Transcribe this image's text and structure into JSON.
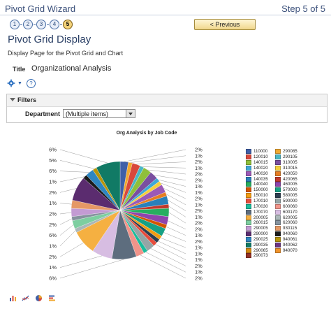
{
  "wizard": {
    "title": "Pivot Grid Wizard",
    "step_text": "Step 5 of 5",
    "steps": [
      "1",
      "2",
      "3",
      "4",
      "5"
    ],
    "current_step": 5,
    "previous_label": "< Previous"
  },
  "page": {
    "title": "Pivot Grid Display",
    "description": "Display Page for the Pivot Grid and Chart",
    "title_label": "Title",
    "title_value": "Organizational Analysis"
  },
  "icons": {
    "settings": "gear-icon",
    "help": "help-icon",
    "help_glyph": "?"
  },
  "filters": {
    "heading": "Filters",
    "department_label": "Department",
    "department_value": "(Multiple items)"
  },
  "chart_data": {
    "type": "pie",
    "title": "Org Analysis by Job Code",
    "left_labels": [
      "6%",
      "5%",
      "6%",
      "1%",
      "2%",
      "1%",
      "2%",
      "2%",
      "6%",
      "1%",
      "2%",
      "1%",
      "6%"
    ],
    "right_labels": [
      "2%",
      "1%",
      "2%",
      "1%",
      "2%",
      "2%",
      "1%",
      "1%",
      "2%",
      "1%",
      "2%",
      "1%",
      "2%",
      "2%",
      "1%",
      "2%",
      "1%",
      "1%",
      "1%",
      "2%",
      "1%",
      "2%"
    ],
    "legend": [
      {
        "code": "110000",
        "color": "#3e5fa8"
      },
      {
        "code": "290085",
        "color": "#f0a830"
      },
      {
        "code": "120010",
        "color": "#d9483b"
      },
      {
        "code": "290105",
        "color": "#4ab7c4"
      },
      {
        "code": "140015",
        "color": "#8fbf3a"
      },
      {
        "code": "310005",
        "color": "#7a4fa0"
      },
      {
        "code": "140020",
        "color": "#3fa8d6"
      },
      {
        "code": "310015",
        "color": "#f5d03c"
      },
      {
        "code": "140030",
        "color": "#9b59b6"
      },
      {
        "code": "420050",
        "color": "#e67e22"
      },
      {
        "code": "140035",
        "color": "#2980b9"
      },
      {
        "code": "420065",
        "color": "#c0392b"
      },
      {
        "code": "140040",
        "color": "#27ae60"
      },
      {
        "code": "460005",
        "color": "#8e44ad"
      },
      {
        "code": "150000",
        "color": "#d35400"
      },
      {
        "code": "570000",
        "color": "#16a085"
      },
      {
        "code": "150010",
        "color": "#f39c12"
      },
      {
        "code": "580005",
        "color": "#2c3e50"
      },
      {
        "code": "170010",
        "color": "#e74c3c"
      },
      {
        "code": "590000",
        "color": "#95a5a6"
      },
      {
        "code": "170030",
        "color": "#1abc9c"
      },
      {
        "code": "600060",
        "color": "#f1948a"
      },
      {
        "code": "170070",
        "color": "#5d6d7e"
      },
      {
        "code": "600170",
        "color": "#d7bde2"
      },
      {
        "code": "200005",
        "color": "#f5b041"
      },
      {
        "code": "620005",
        "color": "#aab7b8"
      },
      {
        "code": "260015",
        "color": "#7dcea0"
      },
      {
        "code": "620060",
        "color": "#85929e"
      },
      {
        "code": "290005",
        "color": "#c39bd3"
      },
      {
        "code": "930115",
        "color": "#e59866"
      },
      {
        "code": "290000",
        "color": "#5b2c6f"
      },
      {
        "code": "940060",
        "color": "#1b1b1b"
      },
      {
        "code": "290025",
        "color": "#2e86c1"
      },
      {
        "code": "940061",
        "color": "#b7950b"
      },
      {
        "code": "290035",
        "color": "#117a65"
      },
      {
        "code": "940062",
        "color": "#6c3483"
      },
      {
        "code": "290065",
        "color": "#d68910"
      },
      {
        "code": "940070",
        "color": "#f0932b"
      },
      {
        "code": "290073",
        "color": "#943126"
      }
    ]
  },
  "toolbar": {
    "icons": [
      "bar-chart-icon",
      "line-chart-icon",
      "pie-chart-icon",
      "stacked-bar-icon"
    ]
  }
}
